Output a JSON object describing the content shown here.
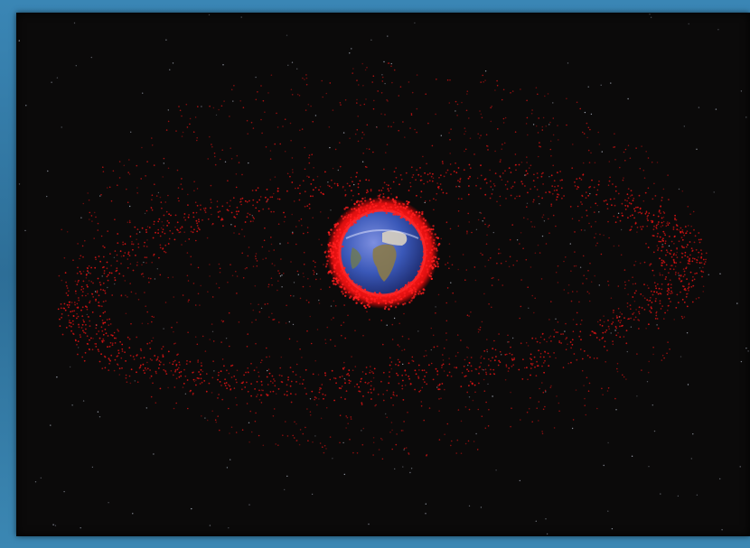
{
  "scene": {
    "subject": "earth",
    "colors": {
      "background": "#0b0a0a",
      "frame": "#3378a6",
      "debris": "#e01414",
      "earth_ocean": "#3a58b8",
      "earth_land": "#8a7a4a",
      "stars": "#cfd6e6"
    }
  }
}
